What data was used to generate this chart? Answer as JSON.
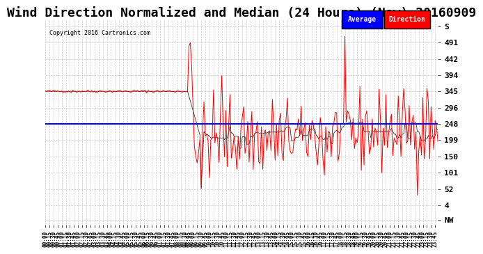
{
  "title": "Wind Direction Normalized and Median (24 Hours) (New) 20160909",
  "copyright": "Copyright 2016 Cartronics.com",
  "ytick_labels_right": [
    "S",
    "491",
    "442",
    "394",
    "345",
    "296",
    "248",
    "199",
    "150",
    "101",
    "52",
    "4",
    "NW"
  ],
  "ytick_vals_right": [
    540,
    491,
    442,
    394,
    345,
    296,
    248,
    199,
    150,
    101,
    52,
    4,
    -40
  ],
  "ymin": -55,
  "ymax": 560,
  "average_line": 248,
  "background_color": "#ffffff",
  "grid_color": "#cccccc",
  "line_color_red": "#ff0000",
  "line_color_blue": "#0000ff",
  "title_fontsize": 13,
  "legend_avg_bg": "#0000ff",
  "legend_dir_bg": "#ff0000",
  "legend_text_color": "#ffffff"
}
